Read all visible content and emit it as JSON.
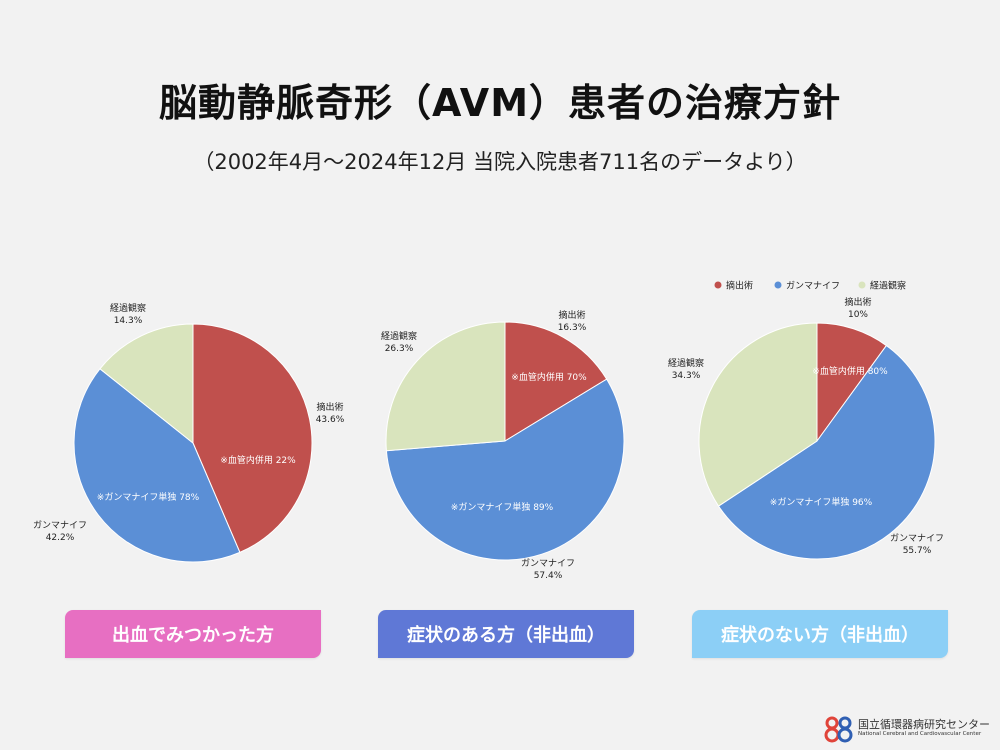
{
  "title": "脳動静脈奇形（AVM）患者の治療方針",
  "subtitle": "（2002年4月〜2024年12月 当院入院患者711名のデータより）",
  "legend": [
    {
      "name": "摘出術",
      "color": "#c0504d"
    },
    {
      "name": "ガンマナイフ",
      "color": "#5b8fd6"
    },
    {
      "name": "経過観察",
      "color": "#d9e4bd"
    }
  ],
  "chart_data": [
    {
      "type": "pie",
      "categories": [
        "摘出術",
        "ガンマナイフ",
        "経過観察"
      ],
      "values": [
        43.6,
        42.2,
        14.3
      ],
      "value_labels": [
        "43.6%",
        "42.2%",
        "14.3%"
      ],
      "annotations": [
        "※血管内併用 22%",
        "※ガンマナイフ単独 78%",
        ""
      ],
      "caption": "出血でみつかった方"
    },
    {
      "type": "pie",
      "categories": [
        "摘出術",
        "ガンマナイフ",
        "経過観察"
      ],
      "values": [
        16.3,
        57.4,
        26.3
      ],
      "value_labels": [
        "16.3%",
        "57.4%",
        "26.3%"
      ],
      "annotations": [
        "※血管内併用 70%",
        "※ガンマナイフ単独 89%",
        ""
      ],
      "caption": "症状のある方（非出血）"
    },
    {
      "type": "pie",
      "categories": [
        "摘出術",
        "ガンマナイフ",
        "経過観察"
      ],
      "values": [
        10,
        55.7,
        34.3
      ],
      "value_labels": [
        "10%",
        "55.7%",
        "34.3%"
      ],
      "annotations": [
        "※血管内併用 80%",
        "※ガンマナイフ単独 96%",
        ""
      ],
      "caption": "症状のない方（非出血）"
    }
  ],
  "logo": {
    "name_jp": "国立循環器病研究センター",
    "name_en": "National Cerebral and Cardiovascular Center"
  }
}
